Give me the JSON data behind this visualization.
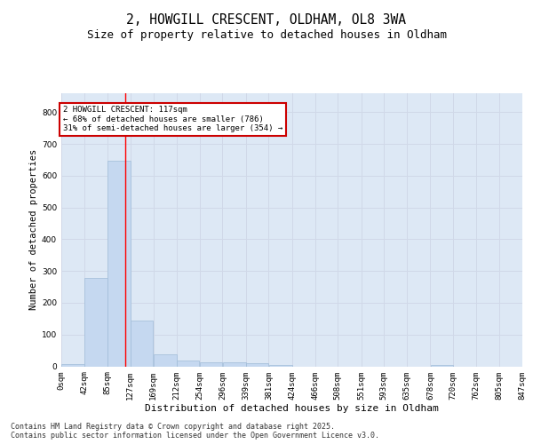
{
  "title1": "2, HOWGILL CRESCENT, OLDHAM, OL8 3WA",
  "title2": "Size of property relative to detached houses in Oldham",
  "xlabel": "Distribution of detached houses by size in Oldham",
  "ylabel": "Number of detached properties",
  "bin_edges": [
    0,
    42,
    85,
    127,
    169,
    212,
    254,
    296,
    339,
    381,
    424,
    466,
    508,
    551,
    593,
    635,
    678,
    720,
    762,
    805,
    847
  ],
  "bar_heights": [
    8,
    278,
    648,
    143,
    38,
    18,
    13,
    12,
    10,
    3,
    0,
    0,
    0,
    0,
    0,
    0,
    5,
    0,
    0,
    0
  ],
  "bar_color": "#c5d8f0",
  "bar_edgecolor": "#a0bcd8",
  "grid_color": "#d0d8e8",
  "background_color": "#dde8f5",
  "red_line_x": 117,
  "annotation_text": "2 HOWGILL CRESCENT: 117sqm\n← 68% of detached houses are smaller (786)\n31% of semi-detached houses are larger (354) →",
  "annotation_box_color": "#ffffff",
  "annotation_box_edge": "#cc0000",
  "annotation_text_size": 6.5,
  "ylim": [
    0,
    860
  ],
  "yticks": [
    0,
    100,
    200,
    300,
    400,
    500,
    600,
    700,
    800
  ],
  "footnote": "Contains HM Land Registry data © Crown copyright and database right 2025.\nContains public sector information licensed under the Open Government Licence v3.0.",
  "title1_fontsize": 10.5,
  "title2_fontsize": 9,
  "xlabel_fontsize": 8,
  "ylabel_fontsize": 7.5,
  "tick_fontsize": 6.5
}
